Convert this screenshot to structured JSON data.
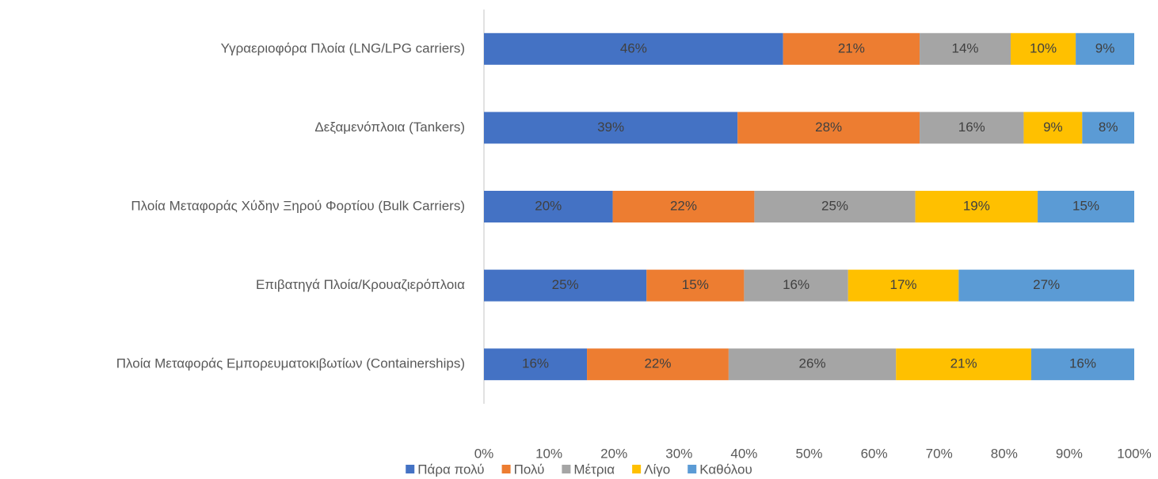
{
  "chart_data": {
    "type": "bar",
    "orientation": "horizontal",
    "stacked": "percent",
    "categories": [
      "Υγραεριοφόρα Πλοία (LNG/LPG carriers)",
      "Δεξαμενόπλοια (Tankers)",
      "Πλοία Μεταφοράς Χύδην Ξηρού Φορτίου (Bulk Carriers)",
      "Επιβατηγά Πλοία/Κρουαζιερόπλοια",
      "Πλοία Μεταφοράς Εμπορευματοκιβωτίων (Containerships)"
    ],
    "series": [
      {
        "name": "Πάρα πολύ",
        "color": "#4472c4",
        "values": [
          46,
          39,
          20,
          25,
          16
        ],
        "value_labels": [
          "46%",
          "39%",
          "20%",
          "25%",
          "16%"
        ]
      },
      {
        "name": "Πολύ",
        "color": "#ed7d31",
        "values": [
          21,
          28,
          22,
          15,
          22
        ],
        "value_labels": [
          "21%",
          "28%",
          "22%",
          "15%",
          "22%"
        ]
      },
      {
        "name": "Μέτρια",
        "color": "#a5a5a5",
        "values": [
          14,
          16,
          25,
          16,
          26
        ],
        "value_labels": [
          "14%",
          "16%",
          "25%",
          "16%",
          "26%"
        ]
      },
      {
        "name": "Λίγο",
        "color": "#ffc000",
        "values": [
          10,
          9,
          19,
          17,
          21
        ],
        "value_labels": [
          "10%",
          "9%",
          "19%",
          "17%",
          "21%"
        ]
      },
      {
        "name": "Καθόλου",
        "color": "#5b9bd5",
        "values": [
          9,
          8,
          15,
          27,
          16
        ],
        "value_labels": [
          "9%",
          "8%",
          "15%",
          "27%",
          "16%"
        ]
      }
    ],
    "xlim": [
      0,
      100
    ],
    "xticks": [
      {
        "value": 0,
        "label": "0%"
      },
      {
        "value": 10,
        "label": "10%"
      },
      {
        "value": 20,
        "label": "20%"
      },
      {
        "value": 30,
        "label": "30%"
      },
      {
        "value": 40,
        "label": "40%"
      },
      {
        "value": 50,
        "label": "50%"
      },
      {
        "value": 60,
        "label": "60%"
      },
      {
        "value": 70,
        "label": "70%"
      },
      {
        "value": 80,
        "label": "80%"
      },
      {
        "value": 90,
        "label": "90%"
      },
      {
        "value": 100,
        "label": "100%"
      }
    ],
    "grid": false,
    "legend": "bottom"
  }
}
